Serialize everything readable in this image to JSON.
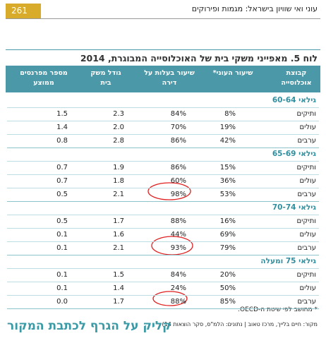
{
  "header": {
    "page_number": "261",
    "running_title": "עוני ואי שוויון בישראל: מגמות ופירוקים"
  },
  "table": {
    "title": "לוח 5. מאפייני משקי בית של האוכלוסייה המבוגרת, 2014",
    "columns": [
      "קבוצת אוכלוסייה",
      "שיעור העוני*",
      "שיעור בעלות על דירה",
      "גודל משק בית",
      "מספר מפרנסים ממוצע"
    ],
    "groups": [
      {
        "label": "גילאי 60-64",
        "rows": [
          [
            "ותיקים",
            "8%",
            "84%",
            "2.3",
            "1.5"
          ],
          [
            "עולים",
            "19%",
            "70%",
            "2.0",
            "1.4"
          ],
          [
            "ערבים",
            "42%",
            "86%",
            "2.8",
            "0.8"
          ]
        ]
      },
      {
        "label": "גילאי 65-69",
        "rows": [
          [
            "ותיקים",
            "15%",
            "86%",
            "1.9",
            "0.7"
          ],
          [
            "עולים",
            "36%",
            "60%",
            "1.8",
            "0.7"
          ],
          [
            "ערבים",
            "53%",
            "98%",
            "2.1",
            "0.5"
          ]
        ]
      },
      {
        "label": "גילאי 70-74",
        "rows": [
          [
            "ותיקים",
            "16%",
            "88%",
            "1.7",
            "0.5"
          ],
          [
            "עולים",
            "69%",
            "44%",
            "1.6",
            "0.1"
          ],
          [
            "ערבים",
            "79%",
            "93%",
            "2.1",
            "0.1"
          ]
        ]
      },
      {
        "label": "גילאי 75 ומעלה",
        "rows": [
          [
            "ותיקים",
            "20%",
            "84%",
            "1.5",
            "0.1"
          ],
          [
            "עולים",
            "50%",
            "24%",
            "1.4",
            "0.1"
          ],
          [
            "ערבים",
            "85%",
            "88%",
            "1.7",
            "0.0"
          ]
        ]
      }
    ]
  },
  "footnote": "* מחושב לפי שיטת ה-OECD.",
  "source": "מקור: חיים בלייך, מרכז טאוב | נתונים: הלמ\"ס, סקר הוצאות 14)",
  "link": "קליק על הגרף לכתבת המקור"
}
